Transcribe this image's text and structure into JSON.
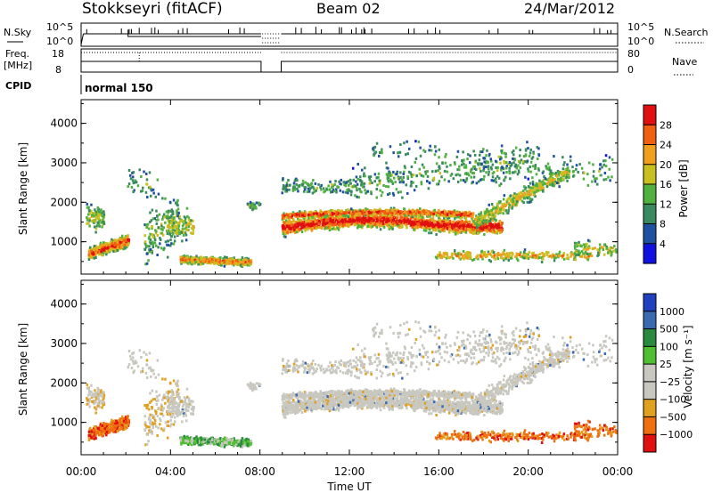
{
  "header": {
    "station": "Stokkseyri (fitACF)",
    "beam": "Beam 02",
    "date": "24/Mar/2012"
  },
  "strip": {
    "nsky_label": "N.Sky",
    "nsky_ticks": [
      "10^5",
      "10^0"
    ],
    "nsearch_label": "N.Search",
    "nsearch_ticks": [
      "10^5",
      "10^0"
    ],
    "freq_label": "Freq.",
    "freq_unit": "[MHz]",
    "freq_ticks": [
      "18",
      "8"
    ],
    "nave_label": "Nave",
    "nave_ticks": [
      "80",
      "0"
    ],
    "cpid_label": "CPID",
    "cpid_value": "normal 150"
  },
  "chart_data": [
    {
      "type": "heatmap",
      "panel": "power",
      "ylabel": "Slant Range [km]",
      "yticks": [
        "1000",
        "2000",
        "3000",
        "4000"
      ],
      "ylim": [
        180,
        4600
      ],
      "xlim": [
        0,
        24
      ],
      "colorbar_label": "Power [dB]",
      "colorbar_ticks": [
        "4",
        "8",
        "12",
        "16",
        "20",
        "24",
        "28"
      ],
      "colors": [
        "#1010e0",
        "#2050a0",
        "#3a8a60",
        "#50b040",
        "#c8c020",
        "#f0a020",
        "#f06010",
        "#e01010"
      ]
    },
    {
      "type": "heatmap",
      "panel": "velocity",
      "xlabel": "Time UT",
      "xticks": [
        "00:00",
        "04:00",
        "08:00",
        "12:00",
        "16:00",
        "20:00",
        "00:00"
      ],
      "ylabel": "Slant Range [km]",
      "yticks": [
        "1000",
        "2000",
        "3000",
        "4000"
      ],
      "ylim": [
        180,
        4600
      ],
      "xlim": [
        0,
        24
      ],
      "colorbar_label": "Velocity [m s⁻¹]",
      "colorbar_ticks": [
        "1000",
        "500",
        "100",
        "25",
        "−25",
        "−100",
        "−500",
        "−1000"
      ],
      "colors": [
        "#2040c0",
        "#3a6ab0",
        "#2a8a40",
        "#50c030",
        "#c8c8c0",
        "#c8c8c0",
        "#e0a020",
        "#f07010",
        "#e01010"
      ]
    }
  ]
}
